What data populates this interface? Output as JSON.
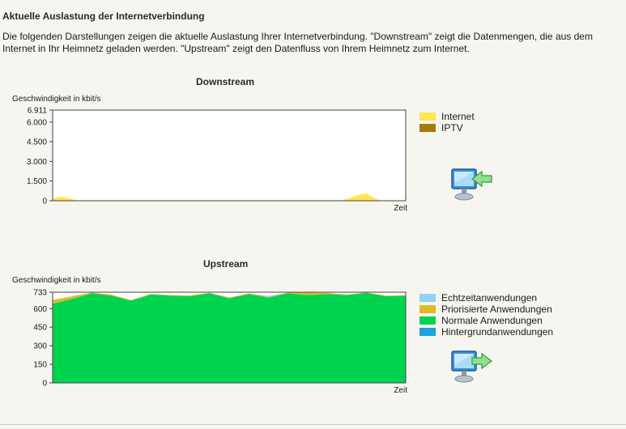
{
  "page": {
    "title": "Aktuelle Auslastung der Internetverbindung",
    "intro": "Die folgenden Darstellungen zeigen die aktuelle Auslastung Ihrer Internetverbindung. \"Downstream\" zeigt die Datenmengen, die aus dem Internet in Ihr Heimnetz geladen werden. \"Upstream\" zeigt den Datenfluss von Ihrem Heimnetz zum Internet."
  },
  "downstream": {
    "title": "Downstream",
    "ylabel": "Geschwindigkeit in kbit/s",
    "xlabel": "Zeit",
    "icon": "monitor-download-icon",
    "legend": [
      {
        "label": "Internet",
        "color": "#fde74c"
      },
      {
        "label": "IPTV",
        "color": "#a8780e"
      }
    ]
  },
  "upstream": {
    "title": "Upstream",
    "ylabel": "Geschwindigkeit in kbit/s",
    "xlabel": "Zeit",
    "icon": "monitor-upload-icon",
    "legend": [
      {
        "label": "Echtzeitanwendungen",
        "color": "#8fd3f4"
      },
      {
        "label": "Priorisierte Anwendungen",
        "color": "#e3b92a"
      },
      {
        "label": "Normale Anwendungen",
        "color": "#00d44f"
      },
      {
        "label": "Hintergrundanwendungen",
        "color": "#1aa3dc"
      }
    ]
  },
  "chart_data": [
    {
      "type": "area",
      "title": "Downstream",
      "xlabel": "Zeit",
      "ylabel": "Geschwindigkeit in kbit/s",
      "ylim": [
        0,
        6911
      ],
      "y_ticks": [
        "6.911",
        "6.000",
        "4.500",
        "3.000",
        "1.500",
        "0"
      ],
      "y_tick_values": [
        6911,
        6000,
        4500,
        3000,
        1500,
        0
      ],
      "grid": false,
      "legend_position": "right",
      "series": [
        {
          "name": "Internet",
          "color": "#fde74c",
          "values": [
            150,
            300,
            200,
            50,
            0,
            0,
            0,
            0,
            0,
            0,
            0,
            0,
            0,
            0,
            0,
            0,
            0,
            0,
            0,
            0,
            0,
            0,
            0,
            0,
            0,
            0,
            0,
            0,
            0,
            0,
            0,
            0,
            0,
            0,
            0,
            0,
            0,
            50,
            250,
            450,
            550,
            200,
            0,
            0,
            0,
            0
          ]
        },
        {
          "name": "IPTV",
          "color": "#a8780e",
          "values": [
            0,
            0,
            0,
            0,
            0,
            0,
            0,
            0,
            0,
            0,
            0,
            0,
            0,
            0,
            0,
            0,
            0,
            0,
            0,
            0,
            0,
            0,
            0,
            0,
            0,
            0,
            0,
            0,
            0,
            0,
            0,
            0,
            0,
            0,
            0,
            0,
            0,
            0,
            0,
            0,
            0,
            0,
            0,
            0,
            0,
            0
          ]
        }
      ]
    },
    {
      "type": "area",
      "title": "Upstream",
      "xlabel": "Zeit",
      "ylabel": "Geschwindigkeit in kbit/s",
      "ylim": [
        0,
        733
      ],
      "y_ticks": [
        "733",
        "600",
        "450",
        "300",
        "150",
        "0"
      ],
      "y_tick_values": [
        733,
        600,
        450,
        300,
        150,
        0
      ],
      "grid": false,
      "legend_position": "right",
      "series": [
        {
          "name": "Normale Anwendungen",
          "color": "#00d44f",
          "values": [
            640,
            680,
            725,
            705,
            665,
            715,
            705,
            700,
            725,
            685,
            718,
            690,
            725,
            710,
            718,
            710,
            728,
            700,
            705
          ]
        },
        {
          "name": "Priorisierte Anwendungen",
          "color": "#e3b92a",
          "values": [
            30,
            20,
            5,
            8,
            5,
            3,
            5,
            8,
            3,
            5,
            5,
            5,
            5,
            20,
            10,
            3,
            3,
            5,
            3
          ]
        },
        {
          "name": "Echtzeitanwendungen",
          "color": "#8fd3f4",
          "values": [
            0,
            0,
            0,
            0,
            0,
            0,
            0,
            0,
            0,
            0,
            0,
            8,
            0,
            0,
            0,
            0,
            0,
            0,
            0
          ]
        },
        {
          "name": "Hintergrundanwendungen",
          "color": "#1aa3dc",
          "values": [
            0,
            0,
            0,
            0,
            0,
            0,
            0,
            0,
            0,
            0,
            0,
            0,
            0,
            0,
            0,
            0,
            0,
            0,
            0
          ]
        }
      ]
    }
  ]
}
